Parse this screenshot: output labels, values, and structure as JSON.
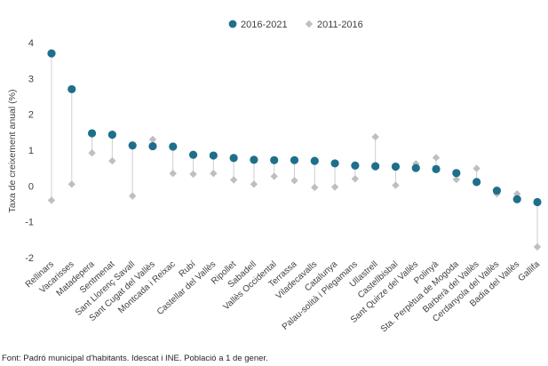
{
  "chart_data": {
    "type": "scatter",
    "ylabel": "Taxa de creixement anual (%)",
    "ylim": [
      -2,
      4
    ],
    "yticks": [
      -2,
      -1,
      0,
      1,
      2,
      3,
      4
    ],
    "legend_position": "top-center",
    "categories": [
      "Rellinars",
      "Vacarisses",
      "Matadepera",
      "Sentmenat",
      "Sant Llorenç Savall",
      "Sant Cugat del Vallès",
      "Montcada i Reixac",
      "Rubí",
      "Castellar del Vallès",
      "Ripollet",
      "Sabadell",
      "Vallès Occidental",
      "Terrassa",
      "Viladecavalls",
      "Catalunya",
      "Palau-solità i Plegamans",
      "Ullastrell",
      "Castellbisbal",
      "Sant Quirze del Vallès",
      "Polinyà",
      "Sta. Perpètua de Mogoda",
      "Barberà del Vallès",
      "Cerdanyola del Vallès",
      "Badia del Vallès",
      "Gallifa"
    ],
    "series": [
      {
        "name": "2016-2021",
        "marker": "circle",
        "color": "#1f6f8b",
        "values": [
          3.7,
          2.7,
          1.47,
          1.43,
          1.13,
          1.11,
          1.1,
          0.87,
          0.85,
          0.78,
          0.73,
          0.72,
          0.72,
          0.7,
          0.63,
          0.57,
          0.55,
          0.54,
          0.5,
          0.47,
          0.36,
          0.11,
          -0.13,
          -0.37,
          -0.45
        ]
      },
      {
        "name": "2011-2016",
        "marker": "diamond",
        "color": "#bfbfbf",
        "values": [
          -0.4,
          0.05,
          0.92,
          0.7,
          -0.28,
          1.3,
          0.35,
          0.33,
          0.35,
          0.17,
          0.05,
          0.27,
          0.15,
          -0.04,
          -0.03,
          0.2,
          1.37,
          0.02,
          0.62,
          0.79,
          0.18,
          0.49,
          -0.22,
          -0.22,
          -1.7
        ]
      }
    ]
  },
  "source": "Font:  Padró municipal d'habitants. Idescat i INE. Població a 1 de gener."
}
